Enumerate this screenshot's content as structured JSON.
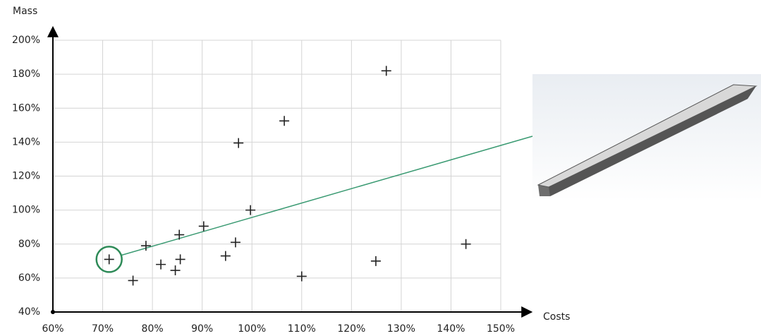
{
  "chart_data": {
    "type": "scatter",
    "y_label": "Mass",
    "x_label": "Costs",
    "x": [
      71.3,
      76.1,
      78.7,
      81.7,
      84.6,
      85.4,
      85.6,
      90.3,
      94.7,
      96.7,
      97.3,
      99.7,
      106.5,
      110,
      124.9,
      127,
      143
    ],
    "values": [
      71,
      58.5,
      79,
      68,
      64.5,
      85.5,
      71,
      90.5,
      73,
      81,
      139.5,
      100,
      152.5,
      61,
      70,
      182,
      80
    ],
    "color": "#222222",
    "xlim": [
      60,
      150
    ],
    "xticks": [
      {
        "value": 60,
        "label": "60%"
      },
      {
        "value": 70,
        "label": "70%"
      },
      {
        "value": 80,
        "label": "80%"
      },
      {
        "value": 90,
        "label": "90%"
      },
      {
        "value": 100,
        "label": "100%"
      },
      {
        "value": 110,
        "label": "110%"
      },
      {
        "value": 120,
        "label": "120%"
      },
      {
        "value": 130,
        "label": "130%"
      },
      {
        "value": 140,
        "label": "140%"
      },
      {
        "value": 150,
        "label": "150%"
      }
    ],
    "ylim": [
      40,
      200
    ],
    "yticks": [
      {
        "value": 40,
        "label": "40%"
      },
      {
        "value": 60,
        "label": "60%"
      },
      {
        "value": 80,
        "label": "80%"
      },
      {
        "value": 100,
        "label": "100%"
      },
      {
        "value": 120,
        "label": "120%"
      },
      {
        "value": 140,
        "label": "140%"
      },
      {
        "value": 160,
        "label": "160%"
      },
      {
        "value": 180,
        "label": "180%"
      },
      {
        "value": 200,
        "label": "200%"
      }
    ],
    "grid": true
  }
}
